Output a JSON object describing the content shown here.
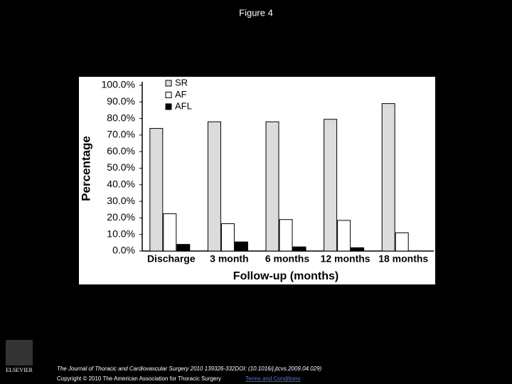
{
  "slide": {
    "title": "Figure 4",
    "citation": "The Journal of Thoracic and Cardiovascular Surgery 2010 139326-332DOI: (10.1016/j.jtcvs.2009.04.029)",
    "copyright": "Copyright © 2010 The American Association for Thoracic Surgery",
    "terms": "Terms and Conditions",
    "publisher": "ELSEVIER"
  },
  "chart_data": {
    "type": "bar",
    "x_label": "Follow-up (months)",
    "y_label": "Percentage",
    "categories": [
      "Discharge",
      "3 month",
      "6 months",
      "12 months",
      "18 months"
    ],
    "series": [
      {
        "name": "SR",
        "color": "#dcdcdc",
        "values": [
          74,
          78,
          78,
          79.5,
          89
        ]
      },
      {
        "name": "AF",
        "color": "#ffffff",
        "values": [
          22.5,
          16.5,
          19,
          18.5,
          11
        ]
      },
      {
        "name": "AFL",
        "color": "#000000",
        "values": [
          4,
          5.5,
          2.5,
          2,
          0
        ]
      }
    ],
    "ylim": [
      0,
      100
    ],
    "yticks": [
      {
        "value": 0,
        "label": "0.0%"
      },
      {
        "value": 10,
        "label": "10.0%"
      },
      {
        "value": 20,
        "label": "20.0%"
      },
      {
        "value": 30,
        "label": "30.0%"
      },
      {
        "value": 40,
        "label": "40.0%"
      },
      {
        "value": 50,
        "label": "50.0%"
      },
      {
        "value": 60,
        "label": "60.0%"
      },
      {
        "value": 70,
        "label": "70.0%"
      },
      {
        "value": 80,
        "label": "80.0%"
      },
      {
        "value": 90,
        "label": "90.0%"
      },
      {
        "value": 100,
        "label": "100.0%"
      }
    ],
    "legend": "upper-left"
  }
}
